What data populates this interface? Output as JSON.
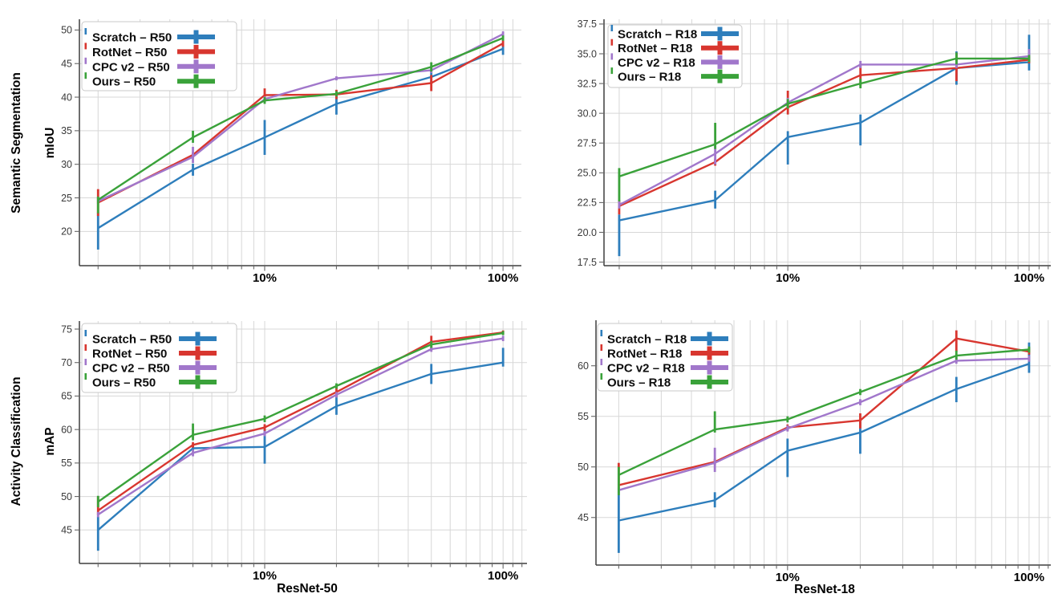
{
  "figure": {
    "background": "#ffffff",
    "rows": [
      {
        "task_label": "Semantic Segmentation",
        "metric_label": "mIoU"
      },
      {
        "task_label": "Activity Classification",
        "metric_label": "mAP"
      }
    ],
    "columns": [
      {
        "backbone_label": "ResNet-50"
      },
      {
        "backbone_label": "ResNet-18"
      }
    ]
  },
  "palette": {
    "scratch": "#2e7ebc",
    "rotnet": "#d8362f",
    "cpc_v2": "#a177cb",
    "ours": "#3aa23a",
    "grid": "#d7d7d7",
    "spine": "#3f3f3f",
    "tick": "#666666",
    "tick_label": "#3a3a3a",
    "x_tick_label": "#000000",
    "legend_border": "#c9c9c9",
    "legend_fill": "#ffffff"
  },
  "chart_data": [
    {
      "id": "semseg-r50",
      "type": "line",
      "task": "Semantic Segmentation",
      "backbone": "ResNet-50",
      "ylabel": "mIoU",
      "xscale": "log",
      "grid": true,
      "legend_position": "upper-left",
      "x": [
        2,
        5,
        10,
        20,
        50,
        100
      ],
      "xticks": [
        {
          "value": 10,
          "label": "10%"
        },
        {
          "value": 100,
          "label": "100%"
        }
      ],
      "yticks": [
        20,
        25,
        30,
        35,
        40,
        45,
        50
      ],
      "ytick_labels": [
        "20",
        "25",
        "30",
        "35",
        "40",
        "45",
        "50"
      ],
      "xlim": [
        1.67,
        119.4
      ],
      "ylim": [
        14.9,
        51.6
      ],
      "series": [
        {
          "name": "Scratch – R50",
          "color_key": "scratch",
          "values": [
            20.5,
            29.2,
            34.0,
            39.0,
            43.0,
            47.2
          ],
          "err": [
            [
              3.2,
              2.3
            ],
            [
              0.9,
              0.9
            ],
            [
              2.6,
              2.6
            ],
            [
              1.6,
              1.3
            ],
            [
              0.9,
              0.9
            ],
            [
              0.9,
              0.8
            ]
          ]
        },
        {
          "name": "RotNet – R50",
          "color_key": "rotnet",
          "values": [
            24.3,
            31.4,
            40.3,
            40.4,
            42.1,
            48.0
          ],
          "err": [
            [
              2.0,
              2.0
            ],
            [
              0.4,
              0.4
            ],
            [
              1.0,
              1.0
            ],
            [
              0.7,
              0.7
            ],
            [
              1.2,
              1.2
            ],
            [
              0.5,
              0.5
            ]
          ]
        },
        {
          "name": "CPC v2 – R50",
          "color_key": "cpc_v2",
          "values": [
            24.5,
            31.1,
            39.7,
            42.8,
            44.0,
            49.4
          ],
          "err": [
            [
              0.4,
              0.4
            ],
            [
              0.9,
              1.5
            ],
            [
              0.4,
              0.4
            ],
            [
              0.3,
              0.3
            ],
            [
              0.4,
              0.4
            ],
            [
              0.4,
              0.4
            ]
          ]
        },
        {
          "name": "Ours – R50",
          "color_key": "ours",
          "values": [
            24.7,
            34.0,
            39.5,
            40.5,
            44.5,
            48.8
          ],
          "err": [
            [
              2.0,
              0.5
            ],
            [
              0.8,
              1.0
            ],
            [
              0.5,
              0.5
            ],
            [
              0.4,
              0.4
            ],
            [
              0.7,
              0.7
            ],
            [
              0.4,
              0.4
            ]
          ]
        }
      ]
    },
    {
      "id": "semseg-r18",
      "type": "line",
      "task": "Semantic Segmentation",
      "backbone": "ResNet-18",
      "ylabel": "mIoU",
      "xscale": "log",
      "grid": true,
      "legend_position": "upper-left",
      "x": [
        2,
        5,
        10,
        20,
        50,
        100
      ],
      "xticks": [
        {
          "value": 10,
          "label": "10%"
        },
        {
          "value": 100,
          "label": "100%"
        }
      ],
      "yticks": [
        17.5,
        20.0,
        22.5,
        25.0,
        27.5,
        30.0,
        32.5,
        35.0,
        37.5
      ],
      "ytick_labels": [
        "17.5",
        "20.0",
        "22.5",
        "25.0",
        "27.5",
        "30.0",
        "32.5",
        "35.0",
        "37.5"
      ],
      "xlim": [
        1.73,
        123.0
      ],
      "ylim": [
        17.2,
        37.9
      ],
      "series": [
        {
          "name": "Scratch – R18",
          "color_key": "scratch",
          "values": [
            21.0,
            22.7,
            28.0,
            29.2,
            33.8,
            34.3
          ],
          "err": [
            [
              3.0,
              0.5
            ],
            [
              0.7,
              0.8
            ],
            [
              2.3,
              0.5
            ],
            [
              1.9,
              0.7
            ],
            [
              1.4,
              1.4
            ],
            [
              0.7,
              2.3
            ]
          ]
        },
        {
          "name": "RotNet – R18",
          "color_key": "rotnet",
          "values": [
            22.2,
            25.9,
            30.5,
            33.2,
            33.8,
            34.5
          ],
          "err": [
            [
              0.7,
              0.5
            ],
            [
              0.3,
              0.3
            ],
            [
              0.6,
              1.4
            ],
            [
              0.9,
              0.9
            ],
            [
              1.1,
              1.3
            ],
            [
              0.3,
              0.3
            ]
          ]
        },
        {
          "name": "CPC v2 – R18",
          "color_key": "cpc_v2",
          "values": [
            22.3,
            26.6,
            30.9,
            34.1,
            34.1,
            34.8
          ],
          "err": [
            [
              0.3,
              0.3
            ],
            [
              0.9,
              0.9
            ],
            [
              0.4,
              0.4
            ],
            [
              0.3,
              0.3
            ],
            [
              0.3,
              0.3
            ],
            [
              0.3,
              0.6
            ]
          ]
        },
        {
          "name": "Ours – R18",
          "color_key": "ours",
          "values": [
            24.7,
            27.4,
            30.8,
            32.5,
            34.6,
            34.6
          ],
          "err": [
            [
              2.1,
              0.7
            ],
            [
              0.4,
              1.8
            ],
            [
              0.4,
              0.4
            ],
            [
              0.4,
              0.4
            ],
            [
              0.5,
              0.5
            ],
            [
              0.3,
              0.3
            ]
          ]
        }
      ]
    },
    {
      "id": "act-r50",
      "type": "line",
      "task": "Activity Classification",
      "backbone": "ResNet-50",
      "ylabel": "mAP",
      "xscale": "log",
      "grid": true,
      "legend_position": "upper-left",
      "x": [
        2,
        5,
        10,
        20,
        50,
        100
      ],
      "xticks": [
        {
          "value": 10,
          "label": "10%"
        },
        {
          "value": 100,
          "label": "100%"
        }
      ],
      "yticks": [
        45,
        50,
        55,
        60,
        65,
        70,
        75
      ],
      "ytick_labels": [
        "45",
        "50",
        "55",
        "60",
        "65",
        "70",
        "75"
      ],
      "xlim": [
        1.67,
        126.0
      ],
      "ylim": [
        40.0,
        76.2
      ],
      "series": [
        {
          "name": "Scratch – R50",
          "color_key": "scratch",
          "values": [
            45.0,
            57.2,
            57.4,
            63.5,
            68.3,
            70.0
          ],
          "err": [
            [
              3.1,
              2.0
            ],
            [
              0.4,
              0.4
            ],
            [
              2.5,
              2.6
            ],
            [
              1.3,
              1.3
            ],
            [
              1.5,
              1.5
            ],
            [
              0.6,
              2.2
            ]
          ]
        },
        {
          "name": "RotNet – R50",
          "color_key": "rotnet",
          "values": [
            47.9,
            57.7,
            60.3,
            65.6,
            73.1,
            74.5
          ],
          "err": [
            [
              0.7,
              2.1
            ],
            [
              0.4,
              0.4
            ],
            [
              0.5,
              0.5
            ],
            [
              0.8,
              0.8
            ],
            [
              1.3,
              0.9
            ],
            [
              0.3,
              0.3
            ]
          ]
        },
        {
          "name": "CPC v2 – R50",
          "color_key": "cpc_v2",
          "values": [
            47.3,
            56.5,
            59.4,
            65.2,
            72.0,
            73.6
          ],
          "err": [
            [
              0.4,
              0.4
            ],
            [
              0.5,
              0.5
            ],
            [
              0.4,
              0.4
            ],
            [
              0.4,
              0.4
            ],
            [
              0.4,
              0.4
            ],
            [
              0.4,
              0.4
            ]
          ]
        },
        {
          "name": "Ours – R50",
          "color_key": "ours",
          "values": [
            49.2,
            59.2,
            61.6,
            66.5,
            72.7,
            74.4
          ],
          "err": [
            [
              0.8,
              0.9
            ],
            [
              0.8,
              1.7
            ],
            [
              0.5,
              0.5
            ],
            [
              0.4,
              0.4
            ],
            [
              0.5,
              0.5
            ],
            [
              0.3,
              0.3
            ]
          ]
        }
      ]
    },
    {
      "id": "act-r18",
      "type": "line",
      "task": "Activity Classification",
      "backbone": "ResNet-18",
      "ylabel": "mAP",
      "xscale": "log",
      "grid": true,
      "legend_position": "upper-left",
      "x": [
        2,
        5,
        10,
        20,
        50,
        100
      ],
      "xticks": [
        {
          "value": 10,
          "label": "10%"
        },
        {
          "value": 100,
          "label": "100%"
        }
      ],
      "yticks": [
        45,
        50,
        55,
        60
      ],
      "ytick_labels": [
        "45",
        "50",
        "55",
        "60"
      ],
      "xlim": [
        1.61,
        123.0
      ],
      "ylim": [
        40.3,
        64.5
      ],
      "series": [
        {
          "name": "Scratch – R18",
          "color_key": "scratch",
          "values": [
            44.7,
            46.7,
            51.6,
            53.4,
            57.7,
            60.2
          ],
          "err": [
            [
              3.2,
              2.9
            ],
            [
              0.7,
              0.8
            ],
            [
              2.6,
              1.2
            ],
            [
              2.1,
              1.1
            ],
            [
              1.3,
              1.2
            ],
            [
              0.9,
              2.1
            ]
          ]
        },
        {
          "name": "RotNet – R18",
          "color_key": "rotnet",
          "values": [
            48.2,
            50.5,
            53.9,
            54.6,
            62.7,
            61.4
          ],
          "err": [
            [
              0.5,
              2.2
            ],
            [
              0.3,
              0.3
            ],
            [
              0.3,
              0.3
            ],
            [
              0.8,
              0.7
            ],
            [
              1.3,
              0.8
            ],
            [
              0.3,
              0.3
            ]
          ]
        },
        {
          "name": "CPC v2 – R18",
          "color_key": "cpc_v2",
          "values": [
            47.7,
            50.4,
            53.8,
            56.4,
            60.5,
            60.7
          ],
          "err": [
            [
              0.3,
              0.3
            ],
            [
              0.9,
              1.5
            ],
            [
              0.3,
              0.3
            ],
            [
              0.3,
              0.3
            ],
            [
              0.3,
              0.3
            ],
            [
              0.3,
              0.3
            ]
          ]
        },
        {
          "name": "Ours – R18",
          "color_key": "ours",
          "values": [
            49.2,
            53.7,
            54.7,
            57.4,
            61.0,
            61.6
          ],
          "err": [
            [
              2.0,
              0.8
            ],
            [
              0.3,
              1.8
            ],
            [
              0.3,
              0.3
            ],
            [
              0.3,
              0.3
            ],
            [
              0.4,
              0.5
            ],
            [
              0.3,
              0.3
            ]
          ]
        }
      ]
    }
  ]
}
